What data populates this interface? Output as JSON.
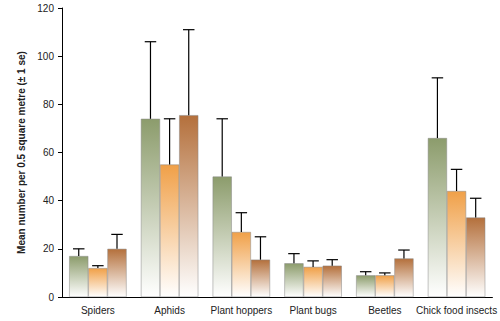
{
  "chart_data": {
    "type": "bar",
    "y_label": "Mean number per 0.5 square metre (± 1 se)",
    "categories": [
      "Spiders",
      "Aphids",
      "Plant hoppers",
      "Plant bugs",
      "Beetles",
      "Chick food insects"
    ],
    "series": [
      {
        "color": "#8c9c6c",
        "values": [
          17,
          74,
          50,
          14,
          9,
          66
        ],
        "errors": [
          3,
          32,
          24,
          4,
          1.5,
          25
        ]
      },
      {
        "color": "#f0a048",
        "values": [
          12,
          55,
          27,
          12.5,
          9,
          44
        ],
        "errors": [
          1,
          19,
          8,
          2.5,
          1,
          9
        ]
      },
      {
        "color": "#b4703c",
        "values": [
          20,
          75.5,
          15.5,
          13,
          16,
          33
        ],
        "errors": [
          6,
          35.5,
          9.5,
          2.5,
          3.5,
          8
        ]
      }
    ],
    "ylim": [
      0,
      120
    ],
    "yticks": [
      0,
      20,
      40,
      60,
      80,
      100,
      120
    ],
    "grid": false
  }
}
